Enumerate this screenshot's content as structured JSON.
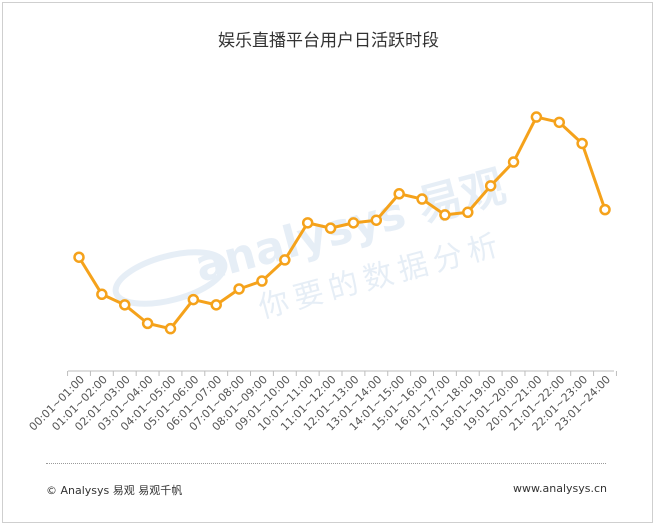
{
  "chart_data": {
    "type": "line",
    "title": "娱乐直播平台用户日活跃时段",
    "categories": [
      "00:01~01:00",
      "01:01~02:00",
      "02:01~03:00",
      "03:01~04:00",
      "04:01~05:00",
      "05:01~06:00",
      "06:01~07:00",
      "07:01~08:00",
      "08:01~09:00",
      "09:01~10:00",
      "10:01~11:00",
      "11:01~12:00",
      "12:01~13:00",
      "13:01~14:00",
      "14:01~15:00",
      "15:01~16:00",
      "16:01~17:00",
      "17:01~18:00",
      "18:01~19:00",
      "19:01~20:00",
      "20:01~21:00",
      "21:01~22:00",
      "22:01~23:00",
      "23:01~24:00"
    ],
    "values": [
      43,
      29,
      25,
      18,
      16,
      27,
      25,
      31,
      34,
      42,
      56,
      54,
      56,
      57,
      67,
      65,
      59,
      60,
      70,
      79,
      96,
      94,
      86,
      61
    ],
    "ylim": [
      0,
      110
    ],
    "grid": false,
    "line_color": "#f5a21b"
  },
  "watermark": {
    "logo_text": "analysys 易观",
    "slogan": "你要的数据分析"
  },
  "footer": {
    "copyright": "© Analysys 易观 易观千帆",
    "url": "www.analysys.cn"
  }
}
